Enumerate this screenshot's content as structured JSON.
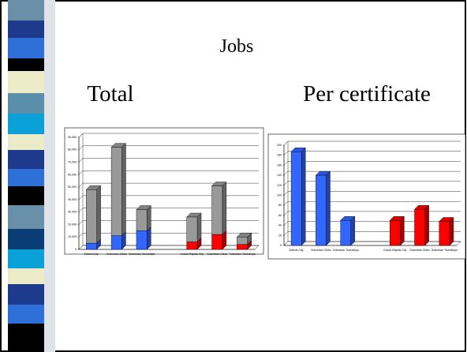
{
  "title": "Jobs",
  "headings": [
    "Total",
    "Per certificate"
  ],
  "chart_data": [
    {
      "type": "bar",
      "stacked": true,
      "categories": [
        "Detroit City",
        "Suburban Cities",
        "Suburban Townships",
        null,
        "Grand Rapids City",
        "Suburban Cities",
        "Suburban Townships"
      ],
      "series": [
        {
          "color": "#3366ff",
          "values": [
            5000,
            11000,
            15000,
            null,
            null,
            null,
            null
          ]
        },
        {
          "color": "#ff0000",
          "values": [
            null,
            null,
            null,
            null,
            6000,
            12000,
            4000
          ]
        },
        {
          "color": "#999999",
          "values": [
            43000,
            71000,
            17000,
            null,
            20000,
            39000,
            6000
          ]
        }
      ],
      "ylim": [
        0,
        90000
      ],
      "yticks": [
        0,
        {
          "value": 10000,
          "label": "10,000"
        },
        {
          "value": 20000,
          "label": "20,000"
        },
        {
          "value": 30000,
          "label": "30,000"
        },
        {
          "value": 40000,
          "label": "40,000"
        },
        {
          "value": 50000,
          "label": "50,000"
        },
        {
          "value": 60000,
          "label": "60,000"
        },
        {
          "value": 70000,
          "label": "70,000"
        },
        {
          "value": 80000,
          "label": "80,000"
        },
        {
          "value": 90000,
          "label": "90,000"
        }
      ],
      "grid": true
    },
    {
      "type": "bar",
      "categories": [
        "Detroit City",
        "Suburban Cities",
        "Suburban Townships",
        null,
        "Grand Rapids City",
        "Suburban Cities",
        "Suburban Townships"
      ],
      "series": [
        {
          "color": "#3366ff",
          "values": [
            187,
            140,
            50,
            null,
            null,
            null,
            null
          ]
        },
        {
          "color": "#ff0000",
          "values": [
            null,
            null,
            null,
            null,
            50,
            72,
            48
          ]
        }
      ],
      "ylim": [
        0,
        200
      ],
      "yticks": [
        0,
        20,
        40,
        60,
        80,
        100,
        120,
        140,
        160,
        180,
        200
      ],
      "grid": true
    }
  ]
}
